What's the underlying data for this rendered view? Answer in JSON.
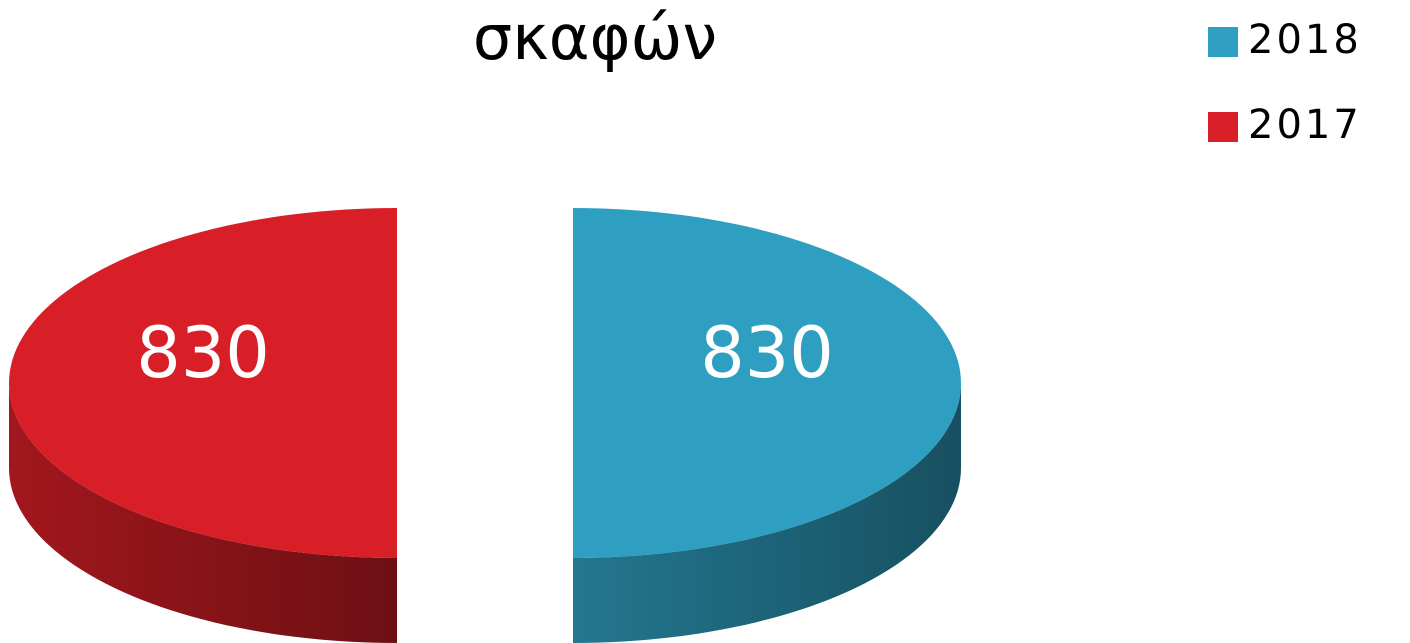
{
  "chart_data": {
    "type": "pie",
    "title": "σκαφών",
    "categories": [
      "2018",
      "2017"
    ],
    "values": [
      830,
      830
    ],
    "colors": [
      "#2e9fc0",
      "#d81f27"
    ],
    "legend": "top-right"
  }
}
